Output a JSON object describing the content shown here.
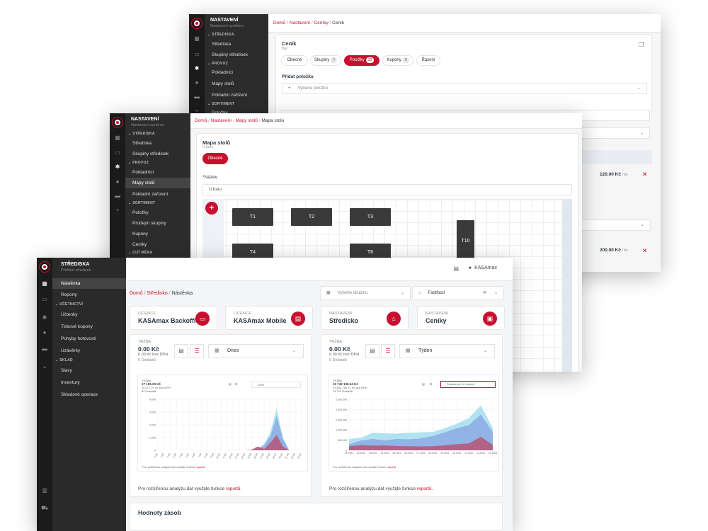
{
  "back": {
    "sidebar": {
      "title": "NASTAVENÍ",
      "subtitle": "Nastavení systému",
      "sections": [
        {
          "title": "STŘEDISKA",
          "items": [
            "Střediska",
            "Skupiny středisek"
          ]
        },
        {
          "title": "PROVOZ",
          "items": [
            "Pokladníci",
            "Mapy stolů",
            "Pokladní zařízení"
          ]
        },
        {
          "title": "SORTIMENT",
          "items": [
            "Položky"
          ]
        }
      ]
    },
    "breadcrumb": [
      "Domů",
      "Nastavení",
      "Ceníky",
      "Ceník"
    ],
    "card_title": "Ceník",
    "card_subtitle": "Bar",
    "tabs": [
      {
        "label": "Obecné",
        "badge": ""
      },
      {
        "label": "Skupiny",
        "badge": "7"
      },
      {
        "label": "Položky",
        "badge": "33"
      },
      {
        "label": "Kupony",
        "badge": "0"
      },
      {
        "label": "Řazení",
        "badge": ""
      }
    ],
    "add_label": "Přidat položku",
    "add_placeholder": "Vyberte položku",
    "prices": [
      "120.00 Kč",
      "200.00 Kč"
    ],
    "price_unit": "/ ks"
  },
  "middle": {
    "sidebar": {
      "title": "NASTAVENÍ",
      "subtitle": "Nastavení systému",
      "sections": [
        {
          "title": "STŘEDISKA",
          "items": [
            "Střediska",
            "Skupiny středisek"
          ]
        },
        {
          "title": "PROVOZ",
          "items": [
            "Pokladníci",
            "Mapy stolů",
            "Pokladní zařízení"
          ]
        },
        {
          "title": "SORTIMENT",
          "items": [
            "Položky",
            "Prodejní skupiny",
            "Kupony",
            "Ceníky"
          ]
        },
        {
          "title": "CIZÍ MĚNA",
          "items": []
        }
      ]
    },
    "breadcrumb": [
      "Domů",
      "Nastavení",
      "Mapy stolů",
      "Mapa stolu"
    ],
    "card_title": "Mapa stolů",
    "card_subtitle": "U baru",
    "tab": "Obecné",
    "name_label": "Název",
    "name_value": "U baru",
    "tables": [
      "T1",
      "T2",
      "T3",
      "T4",
      "T8",
      "T10"
    ]
  },
  "front": {
    "sidebar": {
      "title": "STŘEDISKA",
      "subtitle": "Přehled středisek",
      "items_top": [
        "Nástěnka",
        "Reporty"
      ],
      "sections": [
        {
          "title": "ÚČETNICTVÍ",
          "items": [
            "Účtenky",
            "Tiskové kupony",
            "Pohyby hotovosti",
            "Uzávěrky"
          ]
        },
        {
          "title": "SKLAD",
          "items": [
            "Slavy",
            "Inventury",
            "Skladové operace"
          ]
        }
      ]
    },
    "user": "KASAmax",
    "breadcrumb": [
      "Domů",
      "Středisko",
      "Nástěnka"
    ],
    "group_placeholder": "Vyberte skupinu",
    "store_value": "Fastfood",
    "licenses": [
      {
        "label": "LICENCE",
        "name": "KASAmax Backoffice",
        "icon": "laptop-icon"
      },
      {
        "label": "LICENCE",
        "name": "KASAmax Mobile",
        "icon": "cash-register-icon"
      },
      {
        "label": "NASTAVENÍ",
        "name": "Středisko",
        "icon": "house-icon"
      },
      {
        "label": "NASTAVENÍ",
        "name": "Ceníky",
        "icon": "price-list-icon"
      }
    ],
    "panels": [
      {
        "label": "TRŽBA",
        "amount": "0.00 Kč",
        "without_vat": "0.00 Kč bez DPH",
        "docs": "0 Dokladů",
        "period": "Dnes",
        "mini_label": "TRŽBA",
        "mini_amount": "17 105.20 Kč",
        "mini_vat": "15 077.27 Kč bez DPH",
        "mini_docs": "82 Dokladů",
        "mini_period": "Dnes",
        "mini_note": "Pro rozšířenou analýzu dat využijte funkce",
        "footer": "Pro rozšířenou analýzu dat využijte funkce",
        "footer_link": "reportů."
      },
      {
        "label": "TRŽBA",
        "amount": "0.00 Kč",
        "without_vat": "0.00 Kč bez DPH",
        "docs": "0 Dokladů",
        "period": "Týden",
        "mini_label": "TRŽBA",
        "mini_amount": "15 742 136.24 Kč",
        "mini_vat": "13 833 760.73 Kč bez DPH",
        "mini_docs": "78 715 Dokladů",
        "mini_period": "Posledních 12 měsíců",
        "mini_note": "Pro rozšířenou analýzu dat využijte funkce",
        "footer": "Pro rozšířenou analýzu dat využijte funkce",
        "footer_link": "reportů."
      }
    ],
    "stock_title": "Hodnoty zásob"
  },
  "chart_data": [
    {
      "type": "area",
      "x": [
        "0:00",
        "1:00",
        "2:00",
        "3:00",
        "4:00",
        "5:00",
        "6:00",
        "7:00",
        "8:00",
        "9:00",
        "10:00",
        "11:00",
        "12:00",
        "13:00",
        "14:00",
        "15:00",
        "16:00",
        "17:00",
        "18:00",
        "19:00",
        "20:00",
        "21:00",
        "22:00",
        "23:00"
      ],
      "y_ticks": [
        "0",
        "1,000",
        "2,000",
        "3,000",
        "4,000"
      ],
      "ylim": [
        0,
        4000
      ],
      "series": [
        {
          "values": [
            0,
            0,
            0,
            0,
            0,
            0,
            0,
            0,
            0,
            0,
            0,
            0,
            0,
            0,
            0,
            0,
            100,
            500,
            1400,
            3300,
            1000,
            0,
            0,
            0
          ],
          "color": "#a8dff0"
        },
        {
          "values": [
            0,
            0,
            0,
            0,
            0,
            0,
            0,
            0,
            0,
            0,
            0,
            0,
            0,
            0,
            0,
            0,
            80,
            400,
            1100,
            2700,
            900,
            0,
            0,
            0
          ],
          "color": "#8eaee3"
        },
        {
          "values": [
            0,
            0,
            0,
            0,
            0,
            0,
            0,
            0,
            0,
            0,
            0,
            0,
            0,
            0,
            0,
            50,
            300,
            100,
            600,
            1200,
            300,
            0,
            0,
            0
          ],
          "color": "#b55a7c"
        }
      ]
    },
    {
      "type": "area",
      "x": [
        "01.2022",
        "02.2022",
        "03.2022",
        "04.2022",
        "05.2022",
        "06.2022",
        "07.2022",
        "08.2022",
        "09.2022",
        "10.2022",
        "11.2022",
        "12.2022",
        "01.2023"
      ],
      "y_ticks": [
        "0",
        "500,000",
        "1,000,000",
        "1,500,000",
        "2,000,000",
        "2,500,000"
      ],
      "ylim": [
        0,
        2500000
      ],
      "series": [
        {
          "values": [
            550000,
            620000,
            870000,
            830000,
            820000,
            860000,
            880000,
            900000,
            1080000,
            1300000,
            1580000,
            2200000,
            1100000
          ],
          "color": "#a8dff0"
        },
        {
          "values": [
            300000,
            480000,
            560000,
            480000,
            560000,
            540000,
            580000,
            700000,
            880000,
            1080000,
            1230000,
            1750000,
            900000
          ],
          "color": "#8eaee3"
        },
        {
          "values": [
            200000,
            250000,
            230000,
            240000,
            210000,
            200000,
            190000,
            200000,
            240000,
            300000,
            340000,
            660000,
            270000
          ],
          "color": "#b55a7c"
        }
      ]
    }
  ]
}
